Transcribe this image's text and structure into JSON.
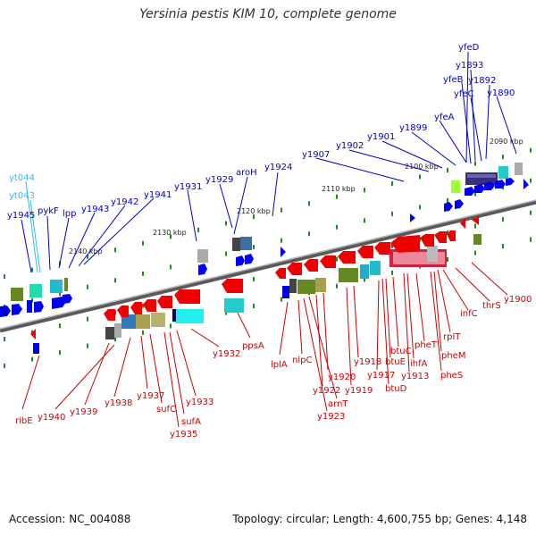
{
  "title": "Yersinia pestis KIM 10, complete genome",
  "footer": {
    "accession": "Accession: NC_004088",
    "topology": "Topology: circular; Length: 4,600,755 bp; Genes: 4,148"
  },
  "colors": {
    "forward_gene": "#0000ee",
    "reverse_gene": "#ee0000",
    "forward_label": "#0000cc",
    "reverse_label": "#cc0000",
    "rna_label": "#33bbee",
    "axis": "#888888",
    "tick": "#228822"
  },
  "kbp_marks": [
    "2090 kbp",
    "2100 kbp",
    "2110 kbp",
    "2120 kbp",
    "2130 kbp",
    "2140 kbp"
  ],
  "upper_labels": [
    "yfeD",
    "y1893",
    "yfeB",
    "y1892",
    "yfeC",
    "y1890",
    "yfeA",
    "y1899",
    "y1901",
    "y1902",
    "y1907",
    "y1924",
    "aroH",
    "y1929",
    "y1931",
    "y1941",
    "y1942",
    "y1943",
    "lpp",
    "pykF",
    "y1945",
    "yt043",
    "yt044"
  ],
  "lower_labels": [
    "y1900",
    "thrS",
    "infC",
    "rplT",
    "pheM",
    "pheS",
    "pheT",
    "ihfA",
    "y1913",
    "btuC",
    "btuE",
    "y1917",
    "btuD",
    "y1918",
    "y1919",
    "y1920",
    "y1922",
    "arnT",
    "y1923",
    "nlpC",
    "lplA",
    "ppsA",
    "y1932",
    "y1933",
    "sufA",
    "y1935",
    "sufC",
    "y1937",
    "y1938",
    "y1939",
    "y1940",
    "ribE"
  ]
}
